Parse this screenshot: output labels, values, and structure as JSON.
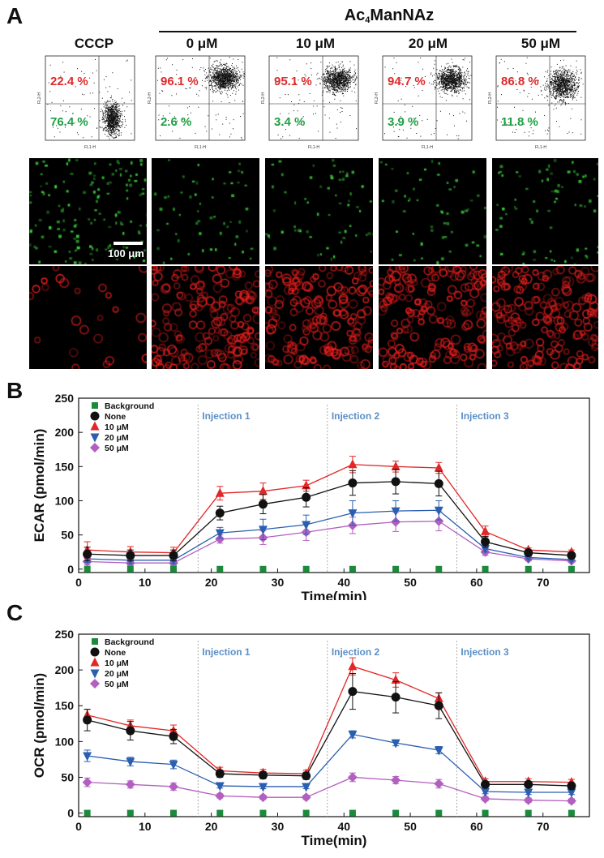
{
  "panel_labels": [
    "A",
    "B",
    "C"
  ],
  "panelA": {
    "group_header": "Ac4ManNAz",
    "group_header_main": "Ac",
    "group_header_sub": "4",
    "group_header_tail": "ManNAz",
    "columns": [
      {
        "label": "CCCP",
        "upper": "22.4 %",
        "lower": "76.4 %"
      },
      {
        "label": "0 μM",
        "upper": "96.1 %",
        "lower": "2.6 %"
      },
      {
        "label": "10 μM",
        "upper": "95.1 %",
        "lower": "3.4 %"
      },
      {
        "label": "20 μM",
        "upper": "94.7 %",
        "lower": "3.9 %"
      },
      {
        "label": "50 μM",
        "upper": "86.8 %",
        "lower": "11.8 %"
      }
    ],
    "flow_axis": {
      "xlabel": "FL1-H",
      "ylabel": "FL2-H"
    },
    "scale_bar": "100 μm",
    "colors": {
      "upper": "#e02a2a",
      "lower": "#1fa045",
      "green_channel": "#3cd23c",
      "red_channel": "#e81e1e"
    }
  },
  "chart_data": [
    {
      "type": "line",
      "panel": "B",
      "xlabel": "Time(min)",
      "ylabel": "ECAR (pmol/min)",
      "xlim": [
        0,
        77
      ],
      "ylim": [
        -5,
        250
      ],
      "xticks": [
        0,
        10,
        20,
        30,
        40,
        50,
        60,
        70
      ],
      "yticks": [
        0,
        50,
        100,
        150,
        200,
        250
      ],
      "x": [
        1.3,
        7.8,
        14.3,
        21.3,
        27.8,
        34.3,
        41.3,
        47.8,
        54.3,
        61.3,
        67.8,
        74.3
      ],
      "injections": [
        {
          "x": 18,
          "label": "Injection 1"
        },
        {
          "x": 37.5,
          "label": "Injection 2"
        },
        {
          "x": 57,
          "label": "Injection 3"
        }
      ],
      "series": [
        {
          "name": "Background",
          "color": "#1b8a3c",
          "marker": "square",
          "values": [
            0,
            0,
            0,
            0,
            0,
            0,
            0,
            0,
            0,
            0,
            0,
            0
          ],
          "err": [
            0,
            0,
            0,
            0,
            0,
            0,
            0,
            0,
            0,
            0,
            0,
            0
          ]
        },
        {
          "name": "None",
          "color": "#111111",
          "marker": "circle",
          "values": [
            22,
            20,
            20,
            82,
            95,
            105,
            126,
            128,
            125,
            40,
            24,
            20
          ],
          "err": [
            10,
            8,
            8,
            10,
            14,
            14,
            18,
            18,
            18,
            8,
            4,
            3
          ]
        },
        {
          "name": "10 μM",
          "color": "#e32626",
          "marker": "triangle-up",
          "values": [
            28,
            25,
            24,
            111,
            114,
            122,
            153,
            150,
            148,
            55,
            28,
            25
          ],
          "err": [
            12,
            8,
            8,
            10,
            12,
            8,
            12,
            8,
            8,
            8,
            3,
            3
          ]
        },
        {
          "name": "20 μM",
          "color": "#2a5fb0",
          "marker": "triangle-down",
          "values": [
            15,
            13,
            13,
            53,
            58,
            65,
            82,
            85,
            86,
            30,
            17,
            14
          ],
          "err": [
            5,
            5,
            5,
            8,
            15,
            14,
            18,
            15,
            14,
            5,
            3,
            2
          ]
        },
        {
          "name": "50 μM",
          "color": "#b25fc0",
          "marker": "diamond",
          "values": [
            11,
            9,
            9,
            44,
            46,
            54,
            64,
            69,
            70,
            25,
            15,
            12
          ],
          "err": [
            5,
            4,
            4,
            6,
            10,
            12,
            12,
            14,
            14,
            5,
            3,
            2
          ]
        }
      ]
    },
    {
      "type": "line",
      "panel": "C",
      "xlabel": "Time(min)",
      "ylabel": "OCR (pmol/min)",
      "xlim": [
        0,
        77
      ],
      "ylim": [
        -5,
        250
      ],
      "xticks": [
        0,
        10,
        20,
        30,
        40,
        50,
        60,
        70
      ],
      "yticks": [
        0,
        50,
        100,
        150,
        200,
        250
      ],
      "x": [
        1.3,
        7.8,
        14.3,
        21.3,
        27.8,
        34.3,
        41.3,
        47.8,
        54.3,
        61.3,
        67.8,
        74.3
      ],
      "injections": [
        {
          "x": 18,
          "label": "Injection 1"
        },
        {
          "x": 37.5,
          "label": "Injection 2"
        },
        {
          "x": 57,
          "label": "Injection 3"
        }
      ],
      "series": [
        {
          "name": "Background",
          "color": "#1b8a3c",
          "marker": "square",
          "values": [
            0,
            0,
            0,
            0,
            0,
            0,
            0,
            0,
            0,
            0,
            0,
            0
          ],
          "err": [
            0,
            0,
            0,
            0,
            0,
            0,
            0,
            0,
            0,
            0,
            0,
            0
          ]
        },
        {
          "name": "None",
          "color": "#111111",
          "marker": "circle",
          "values": [
            130,
            115,
            107,
            55,
            53,
            52,
            170,
            162,
            150,
            40,
            40,
            38
          ],
          "err": [
            15,
            13,
            10,
            5,
            5,
            5,
            25,
            22,
            18,
            4,
            4,
            4
          ]
        },
        {
          "name": "10 μM",
          "color": "#e32626",
          "marker": "triangle-up",
          "values": [
            137,
            122,
            115,
            59,
            56,
            55,
            205,
            186,
            160,
            44,
            44,
            43
          ],
          "err": [
            8,
            8,
            8,
            5,
            5,
            5,
            12,
            10,
            8,
            4,
            4,
            4
          ]
        },
        {
          "name": "20 μM",
          "color": "#2a5fb0",
          "marker": "triangle-down",
          "values": [
            80,
            72,
            68,
            38,
            37,
            37,
            110,
            98,
            88,
            30,
            29,
            29
          ],
          "err": [
            8,
            6,
            6,
            3,
            3,
            3,
            5,
            4,
            5,
            3,
            3,
            3
          ]
        },
        {
          "name": "50 μM",
          "color": "#b25fc0",
          "marker": "diamond",
          "values": [
            43,
            40,
            37,
            24,
            22,
            22,
            50,
            46,
            41,
            20,
            18,
            17
          ],
          "err": [
            6,
            5,
            5,
            3,
            3,
            3,
            6,
            5,
            6,
            3,
            3,
            3
          ]
        }
      ]
    }
  ]
}
